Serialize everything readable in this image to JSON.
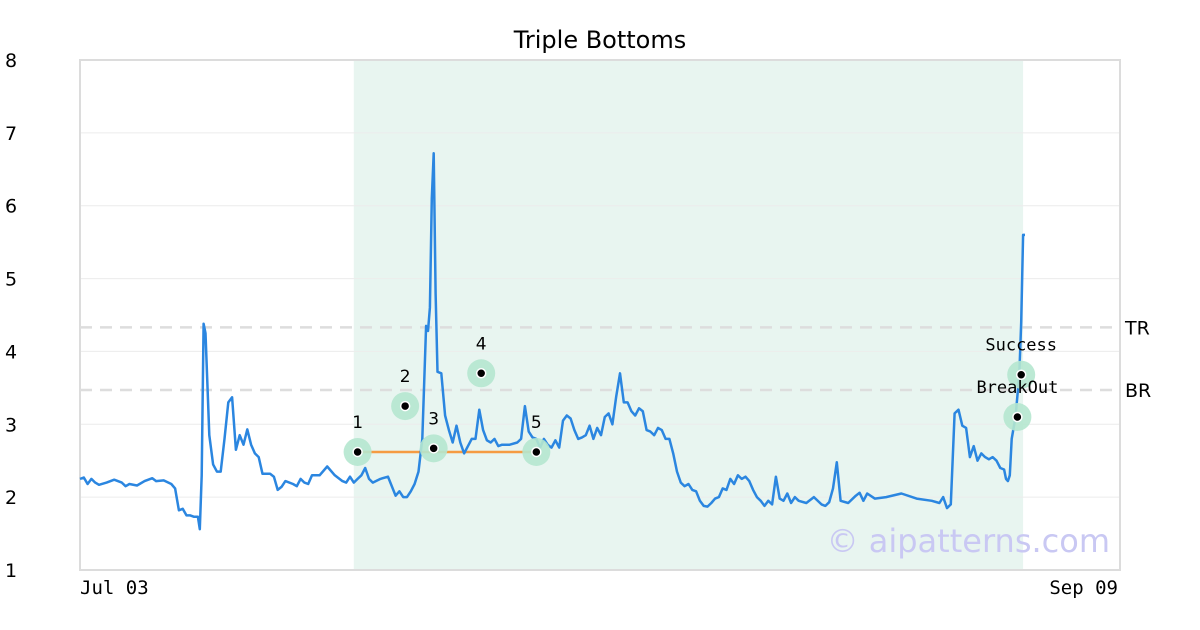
{
  "chart_data": {
    "type": "line",
    "title": "Triple Bottoms",
    "xlabel": "",
    "ylabel": "",
    "ylim": [
      1,
      8
    ],
    "yticks": [
      1,
      2,
      3,
      4,
      5,
      6,
      7,
      8
    ],
    "x_tick_labels": [
      {
        "index": 0,
        "label": "Jul 03"
      },
      {
        "index": 399,
        "label": "Sep 09"
      }
    ],
    "grid": true,
    "n_points": 400,
    "series": [
      {
        "color": "#2b86e0",
        "keypoints": [
          [
            0,
            2.25
          ],
          [
            2,
            2.27
          ],
          [
            4,
            2.18
          ],
          [
            6,
            2.25
          ],
          [
            8,
            2.2
          ],
          [
            10,
            2.17
          ],
          [
            14,
            2.2
          ],
          [
            18,
            2.24
          ],
          [
            22,
            2.2
          ],
          [
            24,
            2.15
          ],
          [
            26,
            2.18
          ],
          [
            30,
            2.16
          ],
          [
            34,
            2.22
          ],
          [
            38,
            2.26
          ],
          [
            40,
            2.22
          ],
          [
            44,
            2.23
          ],
          [
            48,
            2.18
          ],
          [
            50,
            2.12
          ],
          [
            52,
            1.82
          ],
          [
            54,
            1.84
          ],
          [
            56,
            1.75
          ],
          [
            58,
            1.75
          ],
          [
            60,
            1.73
          ],
          [
            62,
            1.73
          ],
          [
            63,
            1.56
          ],
          [
            64,
            2.3
          ],
          [
            65,
            4.38
          ],
          [
            66,
            4.25
          ],
          [
            68,
            2.85
          ],
          [
            70,
            2.45
          ],
          [
            72,
            2.35
          ],
          [
            74,
            2.35
          ],
          [
            76,
            2.8
          ],
          [
            78,
            3.3
          ],
          [
            80,
            3.37
          ],
          [
            82,
            2.65
          ],
          [
            84,
            2.85
          ],
          [
            86,
            2.72
          ],
          [
            88,
            2.93
          ],
          [
            90,
            2.72
          ],
          [
            92,
            2.6
          ],
          [
            94,
            2.55
          ],
          [
            96,
            2.32
          ],
          [
            98,
            2.32
          ],
          [
            100,
            2.32
          ],
          [
            102,
            2.28
          ],
          [
            104,
            2.1
          ],
          [
            106,
            2.14
          ],
          [
            108,
            2.22
          ],
          [
            112,
            2.18
          ],
          [
            114,
            2.15
          ],
          [
            116,
            2.25
          ],
          [
            118,
            2.2
          ],
          [
            120,
            2.18
          ],
          [
            122,
            2.3
          ],
          [
            126,
            2.3
          ],
          [
            130,
            2.42
          ],
          [
            134,
            2.3
          ],
          [
            138,
            2.22
          ],
          [
            140,
            2.2
          ],
          [
            142,
            2.28
          ],
          [
            144,
            2.2
          ],
          [
            146,
            2.25
          ],
          [
            148,
            2.3
          ],
          [
            150,
            2.4
          ],
          [
            152,
            2.25
          ],
          [
            154,
            2.2
          ],
          [
            158,
            2.25
          ],
          [
            162,
            2.28
          ],
          [
            164,
            2.15
          ],
          [
            166,
            2.02
          ],
          [
            168,
            2.08
          ],
          [
            170,
            2.0
          ],
          [
            172,
            2.0
          ],
          [
            174,
            2.08
          ],
          [
            176,
            2.18
          ],
          [
            178,
            2.35
          ],
          [
            180,
            2.8
          ],
          [
            182,
            4.35
          ],
          [
            183,
            4.28
          ],
          [
            184,
            4.6
          ],
          [
            185,
            6.1
          ],
          [
            186,
            6.72
          ],
          [
            187,
            4.8
          ],
          [
            188,
            3.72
          ],
          [
            190,
            3.7
          ],
          [
            192,
            3.12
          ],
          [
            194,
            2.92
          ],
          [
            196,
            2.75
          ],
          [
            198,
            2.98
          ],
          [
            200,
            2.75
          ],
          [
            202,
            2.6
          ],
          [
            206,
            2.8
          ],
          [
            208,
            2.8
          ],
          [
            210,
            3.2
          ],
          [
            212,
            2.92
          ],
          [
            214,
            2.78
          ],
          [
            216,
            2.75
          ],
          [
            218,
            2.8
          ],
          [
            220,
            2.7
          ],
          [
            222,
            2.72
          ],
          [
            226,
            2.72
          ],
          [
            230,
            2.75
          ],
          [
            232,
            2.8
          ],
          [
            234,
            3.25
          ],
          [
            236,
            2.9
          ],
          [
            238,
            2.82
          ],
          [
            240,
            2.8
          ],
          [
            242,
            2.68
          ],
          [
            244,
            2.8
          ],
          [
            246,
            2.72
          ],
          [
            248,
            2.68
          ],
          [
            250,
            2.78
          ],
          [
            252,
            2.68
          ],
          [
            254,
            3.05
          ],
          [
            256,
            3.12
          ],
          [
            258,
            3.08
          ],
          [
            260,
            2.92
          ],
          [
            262,
            2.8
          ],
          [
            264,
            2.82
          ],
          [
            266,
            2.85
          ],
          [
            268,
            2.98
          ],
          [
            270,
            2.8
          ],
          [
            272,
            2.95
          ],
          [
            274,
            2.85
          ],
          [
            276,
            3.1
          ],
          [
            278,
            3.15
          ],
          [
            280,
            3.0
          ],
          [
            282,
            3.38
          ],
          [
            284,
            3.7
          ],
          [
            286,
            3.3
          ],
          [
            288,
            3.3
          ],
          [
            290,
            3.18
          ],
          [
            292,
            3.12
          ],
          [
            294,
            3.22
          ],
          [
            296,
            3.18
          ],
          [
            298,
            2.92
          ],
          [
            300,
            2.9
          ],
          [
            302,
            2.85
          ],
          [
            304,
            2.95
          ],
          [
            306,
            2.92
          ],
          [
            308,
            2.8
          ],
          [
            310,
            2.8
          ],
          [
            312,
            2.6
          ],
          [
            314,
            2.35
          ],
          [
            316,
            2.2
          ],
          [
            318,
            2.15
          ],
          [
            320,
            2.18
          ],
          [
            322,
            2.1
          ],
          [
            324,
            2.08
          ],
          [
            326,
            1.95
          ],
          [
            328,
            1.88
          ],
          [
            330,
            1.87
          ],
          [
            332,
            1.92
          ],
          [
            334,
            1.98
          ],
          [
            336,
            2.0
          ],
          [
            338,
            2.12
          ],
          [
            340,
            2.1
          ],
          [
            342,
            2.25
          ],
          [
            344,
            2.18
          ],
          [
            346,
            2.3
          ],
          [
            348,
            2.25
          ],
          [
            350,
            2.28
          ],
          [
            352,
            2.22
          ],
          [
            354,
            2.1
          ],
          [
            356,
            2.0
          ],
          [
            358,
            1.95
          ],
          [
            360,
            1.88
          ],
          [
            362,
            1.95
          ],
          [
            364,
            1.9
          ],
          [
            366,
            2.28
          ],
          [
            368,
            1.98
          ],
          [
            370,
            1.95
          ],
          [
            372,
            2.05
          ],
          [
            374,
            1.92
          ],
          [
            376,
            2.0
          ],
          [
            378,
            1.95
          ],
          [
            382,
            1.92
          ],
          [
            386,
            2.0
          ],
          [
            390,
            1.9
          ],
          [
            392,
            1.88
          ],
          [
            394,
            1.93
          ],
          [
            396,
            2.12
          ],
          [
            398,
            2.48
          ],
          [
            400,
            1.95
          ],
          [
            404,
            1.92
          ],
          [
            408,
            2.02
          ],
          [
            410,
            2.06
          ],
          [
            412,
            1.95
          ],
          [
            414,
            2.05
          ],
          [
            418,
            1.98
          ],
          [
            424,
            2.0
          ],
          [
            432,
            2.05
          ],
          [
            440,
            1.98
          ],
          [
            448,
            1.95
          ],
          [
            452,
            1.92
          ],
          [
            454,
            2.0
          ],
          [
            456,
            1.85
          ],
          [
            458,
            1.9
          ],
          [
            460,
            3.15
          ],
          [
            462,
            3.2
          ],
          [
            464,
            2.98
          ],
          [
            466,
            2.95
          ],
          [
            468,
            2.55
          ],
          [
            470,
            2.7
          ],
          [
            472,
            2.5
          ],
          [
            474,
            2.6
          ],
          [
            476,
            2.55
          ],
          [
            478,
            2.52
          ],
          [
            480,
            2.55
          ],
          [
            482,
            2.5
          ],
          [
            484,
            2.4
          ],
          [
            486,
            2.38
          ],
          [
            487,
            2.25
          ],
          [
            488,
            2.22
          ],
          [
            489,
            2.3
          ],
          [
            490,
            2.8
          ],
          [
            492,
            3.1
          ],
          [
            494,
            3.68
          ],
          [
            495,
            4.4
          ],
          [
            496,
            5.6
          ],
          [
            497,
            5.6
          ]
        ]
      }
    ],
    "shaded_region": {
      "x": [
        144,
        496
      ],
      "color": "#e8f5f0"
    },
    "neckline": {
      "x": [
        146,
        240
      ],
      "y": 2.62,
      "color": "#f59b42"
    },
    "levels": [
      {
        "label": "TR",
        "y": 4.33
      },
      {
        "label": "BR",
        "y": 3.47
      }
    ],
    "annotations": [
      {
        "label": "1",
        "x": 146,
        "y": 2.62
      },
      {
        "label": "2",
        "x": 171,
        "y": 3.25
      },
      {
        "label": "3",
        "x": 186,
        "y": 2.67
      },
      {
        "label": "4",
        "x": 211,
        "y": 3.7
      },
      {
        "label": "5",
        "x": 240,
        "y": 2.62
      },
      {
        "label": "Success",
        "x": 495,
        "y": 3.68
      },
      {
        "label": "BreakOut",
        "x": 493,
        "y": 3.1
      }
    ],
    "watermark": "© aipatterns.com"
  }
}
